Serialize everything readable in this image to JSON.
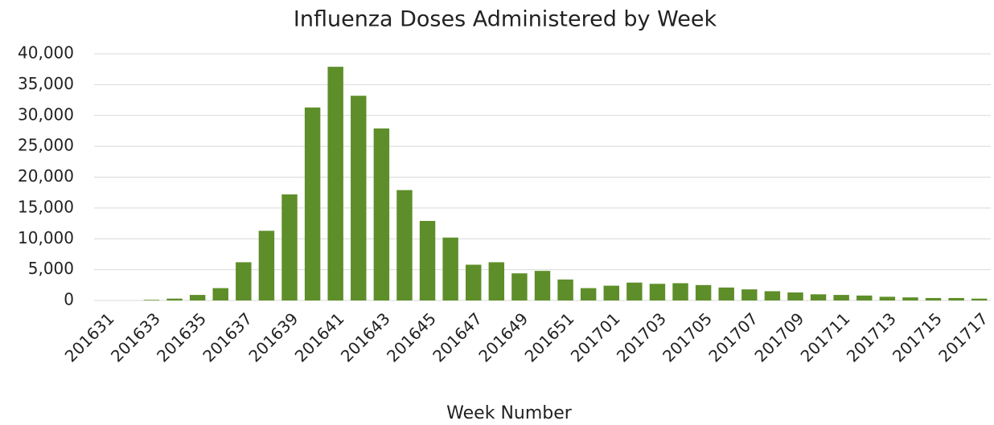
{
  "chart_data": {
    "type": "bar",
    "title": "Influenza Doses Administered by Week",
    "x_label": "Week Number",
    "categories": [
      "201631",
      null,
      "201633",
      null,
      "201635",
      null,
      "201637",
      null,
      "201639",
      null,
      "201641",
      null,
      "201643",
      null,
      "201645",
      null,
      "201647",
      null,
      "201649",
      null,
      "201651",
      null,
      "201701",
      null,
      "201703",
      null,
      "201705",
      null,
      "201707",
      null,
      "201709",
      null,
      "201711",
      null,
      "201713",
      null,
      "201715",
      null,
      "201717"
    ],
    "values": [
      0,
      0,
      100,
      300,
      900,
      2000,
      6200,
      11300,
      17200,
      31300,
      37900,
      33200,
      27900,
      17900,
      12900,
      10200,
      5800,
      6200,
      4400,
      4800,
      3400,
      2000,
      2400,
      2900,
      2700,
      2800,
      2500,
      2100,
      1800,
      1500,
      1300,
      1000,
      900,
      800,
      600,
      500,
      400,
      400,
      300
    ],
    "color": "#5e8e29",
    "ylim": [
      0,
      40000
    ],
    "yticks": [
      0,
      {
        "value": 5000,
        "label": "5,000"
      },
      {
        "value": 10000,
        "label": "10,000"
      },
      {
        "value": 15000,
        "label": "15,000"
      },
      {
        "value": 20000,
        "label": "20,000"
      },
      {
        "value": 25000,
        "label": "25,000"
      },
      {
        "value": 30000,
        "label": "30,000"
      },
      {
        "value": 35000,
        "label": "35,000"
      },
      {
        "value": 40000,
        "label": "40,000"
      }
    ],
    "grid": true
  }
}
